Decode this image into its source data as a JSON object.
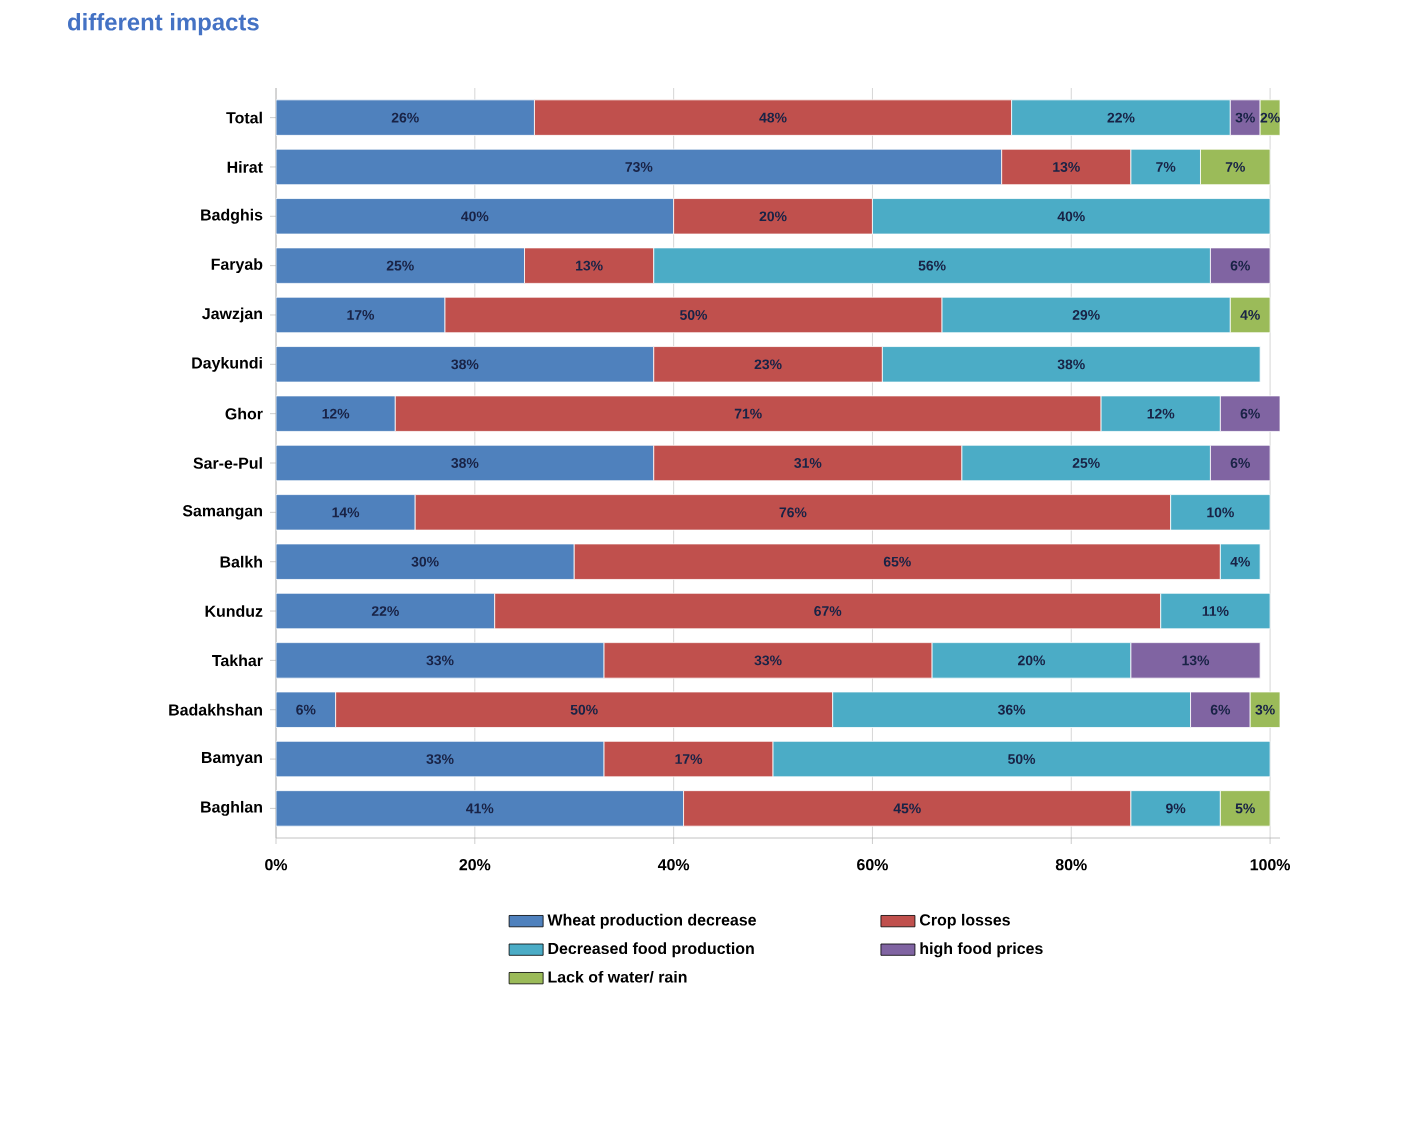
{
  "chart_data": {
    "type": "bar",
    "orientation": "horizontal",
    "stacked": true,
    "title": "different impacts",
    "categories": [
      "Total",
      "Hirat",
      "Badghis",
      "Faryab",
      "Jawzjan",
      "Daykundi",
      "Ghor",
      "Sar-e-Pul",
      "Samangan",
      "Balkh",
      "Kunduz",
      "Takhar",
      "Badakhshan",
      "Bamyan",
      "Baghlan"
    ],
    "series": [
      {
        "name": "Wheat production decrease",
        "color": "#4f81bd",
        "values": [
          26,
          73,
          40,
          25,
          17,
          38,
          12,
          38,
          14,
          30,
          22,
          33,
          6,
          33,
          41
        ],
        "value_labels": [
          "26%",
          "73%",
          "40%",
          "25%",
          "17%",
          "38%",
          "12%",
          "38%",
          "14%",
          "30%",
          "22%",
          "33%",
          "6%",
          "33%",
          "41%"
        ]
      },
      {
        "name": "Crop losses",
        "color": "#c0504d",
        "values": [
          48,
          13,
          20,
          13,
          50,
          23,
          71,
          31,
          76,
          65,
          67,
          33,
          50,
          17,
          45
        ],
        "value_labels": [
          "48%",
          "13%",
          "20%",
          "13%",
          "50%",
          "23%",
          "71%",
          "31%",
          "76%",
          "65%",
          "67%",
          "33%",
          "50%",
          "17%",
          "45%"
        ]
      },
      {
        "name": "Decreased  food production",
        "color": "#4bacc6",
        "values": [
          22,
          7,
          40,
          56,
          29,
          38,
          12,
          25,
          10,
          4,
          11,
          20,
          36,
          50,
          9
        ],
        "value_labels": [
          "22%",
          "7%",
          "40%",
          "56%",
          "29%",
          "38%",
          "12%",
          "25%",
          "10%",
          "4%",
          "11%",
          "20%",
          "36%",
          "50%",
          "9%"
        ]
      },
      {
        "name": "high food prices",
        "color": "#8064a2",
        "values": [
          3,
          null,
          null,
          6,
          null,
          null,
          6,
          6,
          null,
          null,
          null,
          13,
          6,
          null,
          null
        ],
        "value_labels": [
          "3%",
          null,
          null,
          "6%",
          null,
          null,
          "6%",
          "6%",
          null,
          null,
          null,
          "13%",
          "6%",
          null,
          null
        ]
      },
      {
        "name": "Lack of water/ rain",
        "color": "#9bbb59",
        "values": [
          2,
          7,
          null,
          null,
          4,
          null,
          null,
          null,
          null,
          null,
          null,
          null,
          3,
          null,
          5
        ],
        "value_labels": [
          "2%",
          "7%",
          null,
          null,
          "4%",
          null,
          null,
          null,
          null,
          null,
          null,
          null,
          "3%",
          null,
          "5%"
        ]
      }
    ],
    "xlim": [
      0,
      101
    ],
    "xticks": [
      {
        "value": 0,
        "label": "0%"
      },
      {
        "value": 20,
        "label": "20%"
      },
      {
        "value": 40,
        "label": "40%"
      },
      {
        "value": 60,
        "label": "60%"
      },
      {
        "value": 80,
        "label": "80%"
      },
      {
        "value": 100,
        "label": "100%"
      }
    ],
    "grid": "x",
    "legend": "bottom"
  }
}
